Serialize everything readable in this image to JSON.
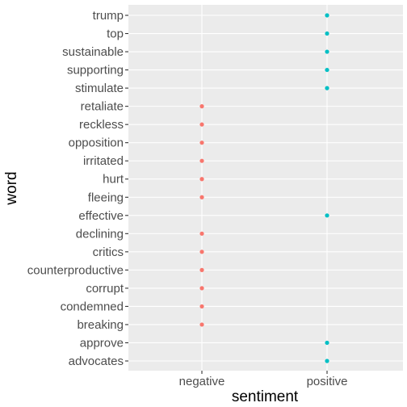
{
  "chart_data": {
    "type": "scatter",
    "xlabel": "sentiment",
    "ylabel": "word",
    "x_categories": [
      "negative",
      "positive"
    ],
    "y_categories": [
      "advocates",
      "approve",
      "breaking",
      "condemned",
      "corrupt",
      "counterproductive",
      "critics",
      "declining",
      "effective",
      "fleeing",
      "hurt",
      "irritated",
      "opposition",
      "reckless",
      "retaliate",
      "stimulate",
      "supporting",
      "sustainable",
      "top",
      "trump"
    ],
    "points": [
      {
        "word": "trump",
        "sentiment": "positive"
      },
      {
        "word": "top",
        "sentiment": "positive"
      },
      {
        "word": "sustainable",
        "sentiment": "positive"
      },
      {
        "word": "supporting",
        "sentiment": "positive"
      },
      {
        "word": "stimulate",
        "sentiment": "positive"
      },
      {
        "word": "retaliate",
        "sentiment": "negative"
      },
      {
        "word": "reckless",
        "sentiment": "negative"
      },
      {
        "word": "opposition",
        "sentiment": "negative"
      },
      {
        "word": "irritated",
        "sentiment": "negative"
      },
      {
        "word": "hurt",
        "sentiment": "negative"
      },
      {
        "word": "fleeing",
        "sentiment": "negative"
      },
      {
        "word": "effective",
        "sentiment": "positive"
      },
      {
        "word": "declining",
        "sentiment": "negative"
      },
      {
        "word": "critics",
        "sentiment": "negative"
      },
      {
        "word": "counterproductive",
        "sentiment": "negative"
      },
      {
        "word": "corrupt",
        "sentiment": "negative"
      },
      {
        "word": "condemned",
        "sentiment": "negative"
      },
      {
        "word": "breaking",
        "sentiment": "negative"
      },
      {
        "word": "approve",
        "sentiment": "positive"
      },
      {
        "word": "advocates",
        "sentiment": "positive"
      }
    ],
    "colors": {
      "negative": "#F8766D",
      "positive": "#00BFC4"
    },
    "panel_background": "#EBEBEB",
    "gridline_color": "#FFFFFF",
    "grid": true,
    "legend": "none"
  }
}
